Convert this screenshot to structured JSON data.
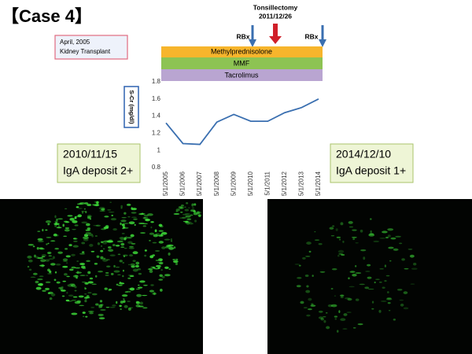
{
  "slide": {
    "title": "【Case 4】",
    "transplant": [
      "April, 2005",
      "Kidney Transplant"
    ],
    "tonsillectomy": [
      "Tonsillectomy",
      "2011/12/26"
    ],
    "rbx": [
      "RBx",
      "RBx"
    ],
    "drugs": [
      "Methylprednisolone",
      "MMF",
      "Tacrolimus"
    ],
    "biopsies": [
      {
        "date": "2010/11/15",
        "finding": "IgA deposit 2+"
      },
      {
        "date": "2014/12/10",
        "finding": "IgA deposit 1+"
      }
    ]
  },
  "chart_data": {
    "type": "line",
    "ylabel": "S-Cr (mg/dl)",
    "x": [
      "5/1/2005",
      "5/1/2006",
      "5/1/2007",
      "5/1/2008",
      "5/1/2009",
      "5/1/2010",
      "5/1/2011",
      "5/1/2012",
      "5/1/2013",
      "5/1/2014"
    ],
    "series": [
      {
        "name": "S-Cr",
        "color": "#3a6fb0",
        "values": [
          1.32,
          1.08,
          1.07,
          1.33,
          1.42,
          1.34,
          1.34,
          1.44,
          1.5,
          1.6
        ]
      }
    ],
    "ylim": [
      0.8,
      1.8
    ],
    "yticks": [
      0.8,
      1,
      1.2,
      1.4,
      1.6,
      1.8
    ],
    "grid": false
  }
}
